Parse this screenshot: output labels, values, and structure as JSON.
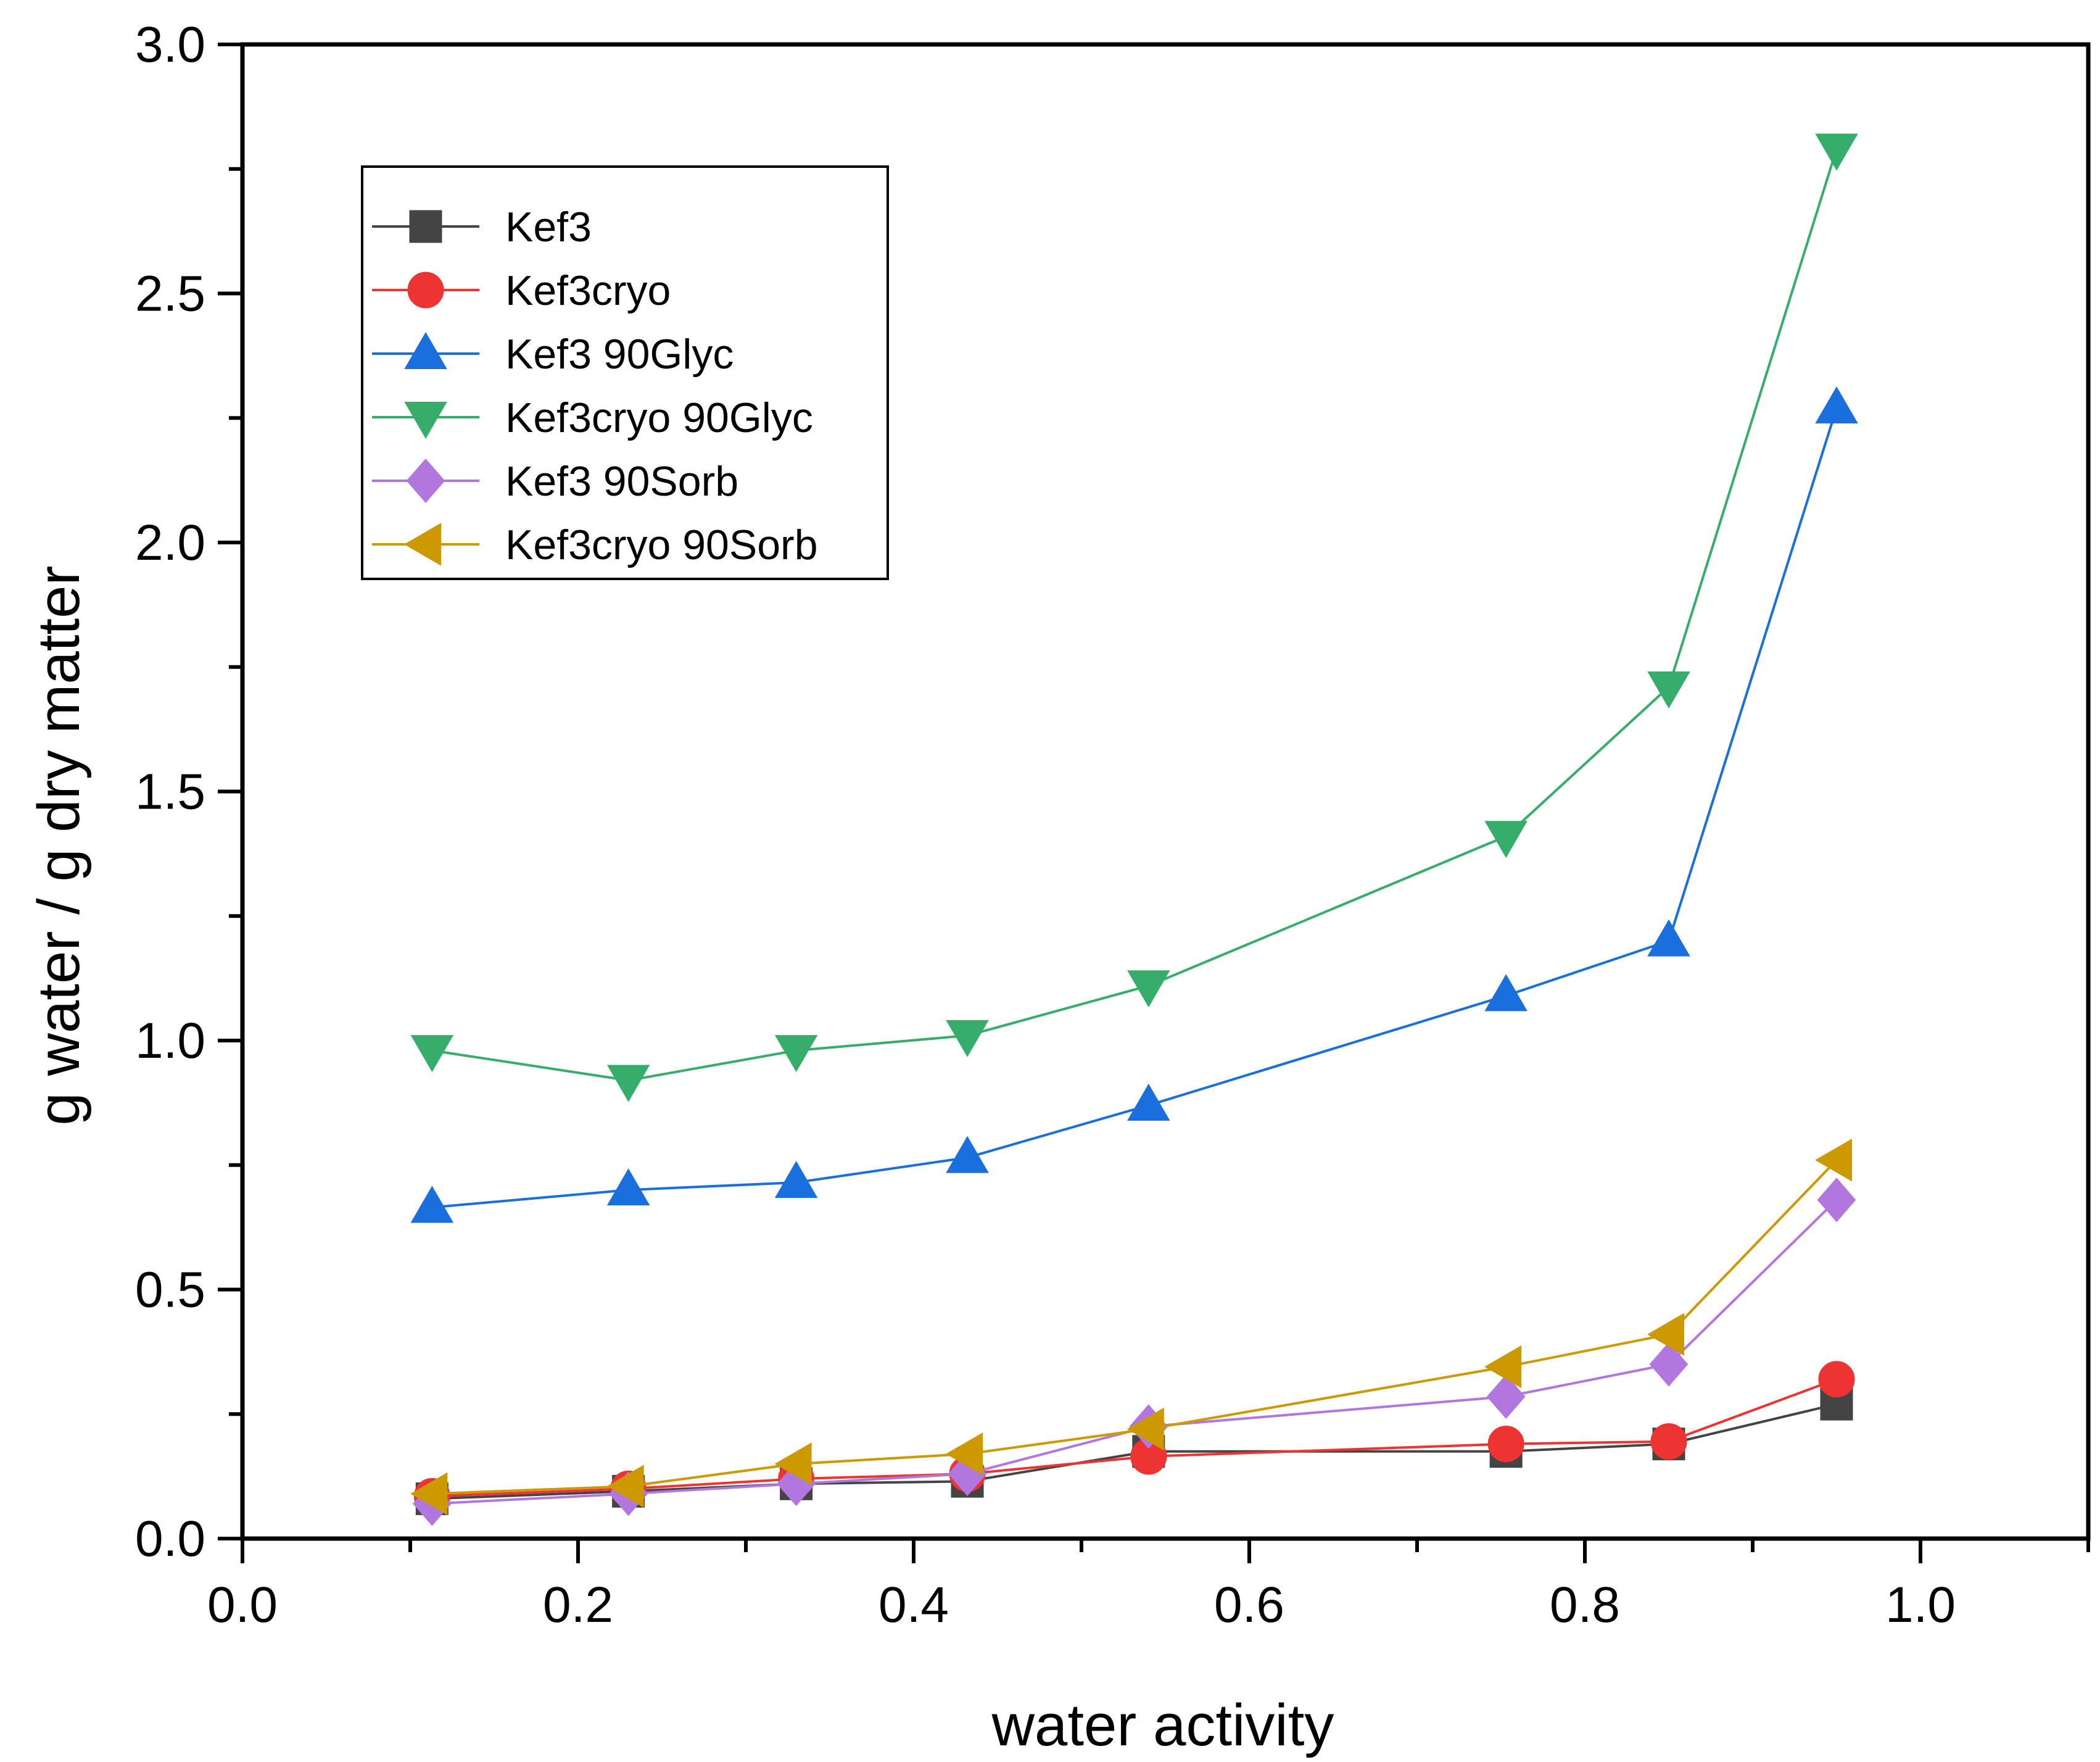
{
  "chart_data": {
    "type": "line",
    "xlabel": "water activity",
    "ylabel": "g water / g dry matter",
    "xlim": [
      0.0,
      1.1
    ],
    "ylim": [
      0.0,
      3.0
    ],
    "x_ticks": [
      "0.0",
      "0.2",
      "0.4",
      "0.6",
      "0.8",
      "1.0"
    ],
    "y_ticks": [
      "0.0",
      "0.5",
      "1.0",
      "1.5",
      "2.0",
      "2.5",
      "3.0"
    ],
    "x": [
      0.113,
      0.23,
      0.33,
      0.432,
      0.54,
      0.753,
      0.85,
      0.95
    ],
    "grid": false,
    "legend_position": "top-left",
    "series": [
      {
        "name": "Kef3",
        "marker": "square",
        "color": "#444444",
        "values": [
          0.08,
          0.095,
          0.11,
          0.115,
          0.175,
          0.175,
          0.19,
          0.27
        ]
      },
      {
        "name": "Kef3cryo",
        "marker": "circle",
        "color": "#ee3333",
        "values": [
          0.085,
          0.1,
          0.12,
          0.13,
          0.165,
          0.19,
          0.195,
          0.32
        ]
      },
      {
        "name": "Kef3 90Glyc",
        "marker": "triangle-up",
        "color": "#1a6fdf",
        "values": [
          0.665,
          0.7,
          0.715,
          0.765,
          0.87,
          1.09,
          1.2,
          2.27
        ]
      },
      {
        "name": "Kef3cryo 90Glyc",
        "marker": "triangle-down",
        "color": "#37ad6b",
        "values": [
          0.98,
          0.92,
          0.98,
          1.01,
          1.11,
          1.41,
          1.71,
          2.79
        ]
      },
      {
        "name": "Kef3 90Sorb",
        "marker": "diamond",
        "color": "#b177de",
        "values": [
          0.07,
          0.09,
          0.11,
          0.13,
          0.225,
          0.285,
          0.35,
          0.68
        ]
      },
      {
        "name": "Kef3cryo 90Sorb",
        "marker": "triangle-left",
        "color": "#cc9900",
        "values": [
          0.09,
          0.105,
          0.15,
          0.17,
          0.22,
          0.345,
          0.41,
          0.76
        ]
      }
    ]
  }
}
